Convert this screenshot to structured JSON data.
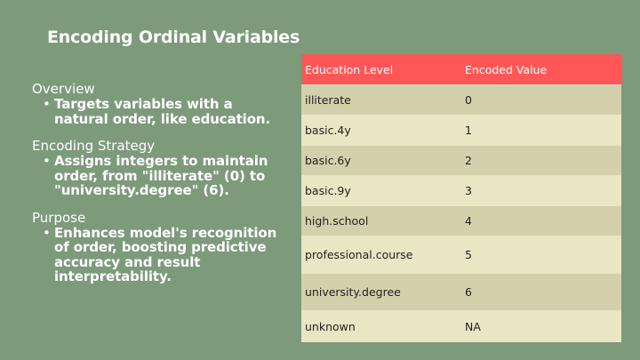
{
  "title": "Encoding Ordinal Variables",
  "sections": [
    {
      "heading": "Overview",
      "bullet": "Targets variables with a natural order, like education."
    },
    {
      "heading": "Encoding Strategy",
      "bullet": "Assigns integers to maintain order, from \"illiterate\" (0) to \"university.degree\" (6)."
    },
    {
      "heading": "Purpose",
      "bullet": "Enhances model's recognition of order, boosting predictive accuracy and result interpretability."
    }
  ],
  "bullet_glyph": "•",
  "table": {
    "headers": [
      "Education Level",
      "Encoded Value"
    ],
    "rows": [
      [
        "illiterate",
        "0"
      ],
      [
        "basic.4y",
        "1"
      ],
      [
        "basic.6y",
        "2"
      ],
      [
        "basic.9y",
        "3"
      ],
      [
        "high.school",
        "4"
      ],
      [
        "professional.course",
        "5"
      ],
      [
        "university.degree",
        "6"
      ],
      [
        "unknown",
        "NA"
      ]
    ]
  },
  "colors": {
    "background": "#7d9a7b",
    "header": "#ff5757",
    "row_dark": "#d3d1ab",
    "row_light": "#e9e6c4"
  }
}
